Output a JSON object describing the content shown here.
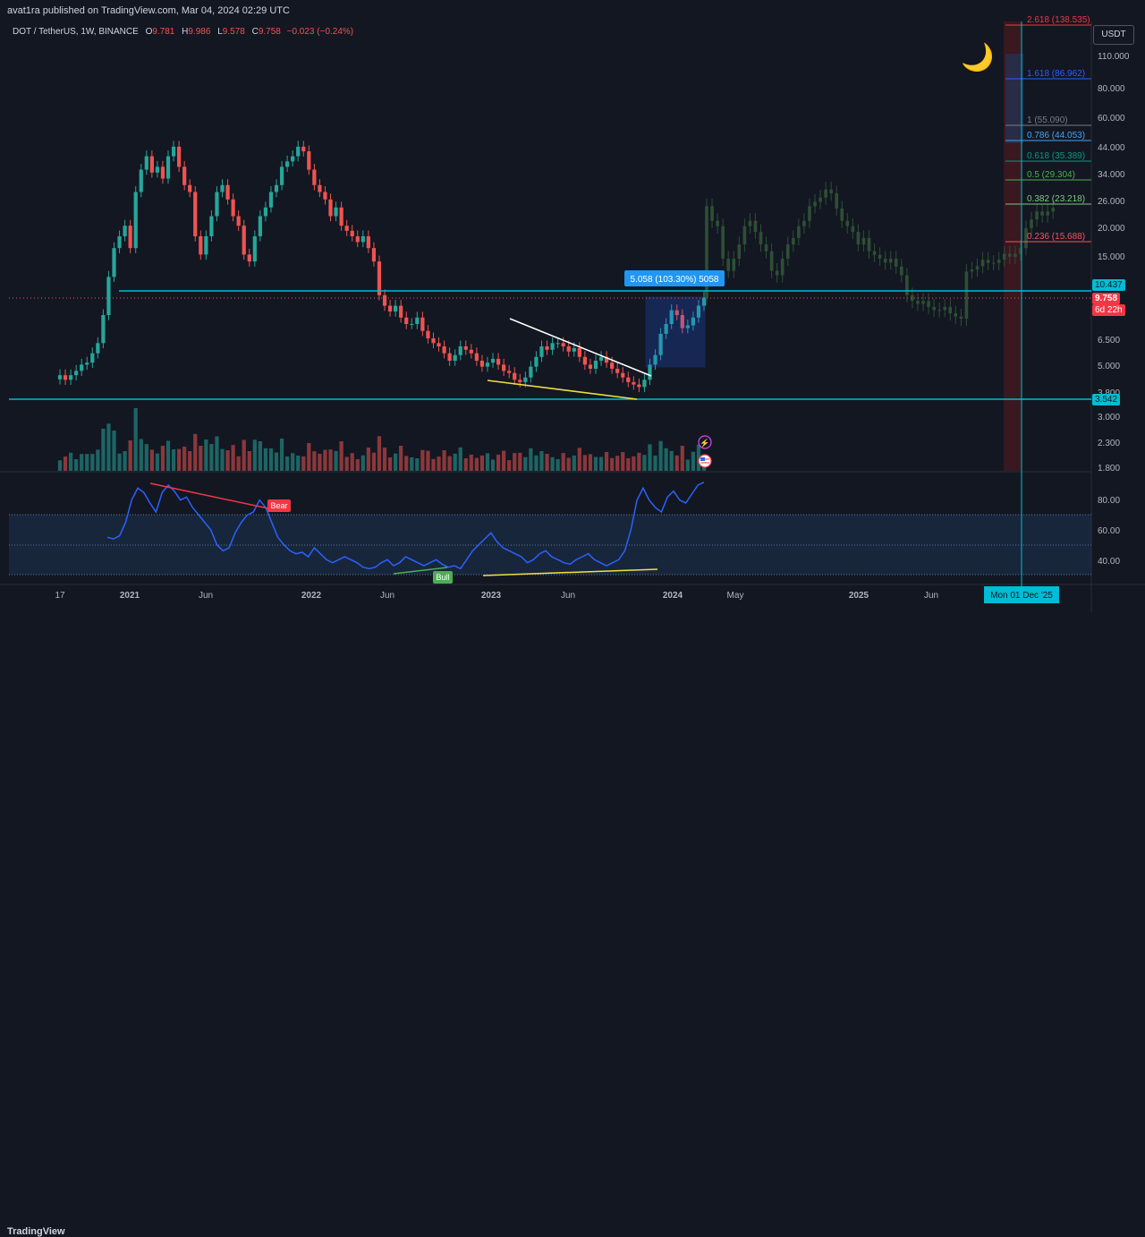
{
  "header": {
    "publisher_text": "avat1ra published on TradingView.com, Mar 04, 2024 02:29 UTC"
  },
  "legend": {
    "symbol": "DOT / TetherUS, 1W, BINANCE",
    "open_label": "O",
    "open": "9.781",
    "high_label": "H",
    "high": "9.986",
    "low_label": "L",
    "low": "9.578",
    "close_label": "C",
    "close": "9.758",
    "change": "−0.023 (−0.24%)"
  },
  "currency": "USDT",
  "moon_icon": "🌙",
  "fib_levels": [
    {
      "label": "2.618 (138.535)",
      "color": "#f23645"
    },
    {
      "label": "1.618 (86.962)",
      "color": "#2962ff"
    },
    {
      "label": "1 (55.090)",
      "color": "#787b86"
    },
    {
      "label": "0.786 (44.053)",
      "color": "#42a5f5"
    },
    {
      "label": "0.618 (35.389)",
      "color": "#089981"
    },
    {
      "label": "0.5 (29.304)",
      "color": "#4caf50"
    },
    {
      "label": "0.382 (23.218)",
      "color": "#81c784"
    },
    {
      "label": "0.236 (15.688)",
      "color": "#f7525f"
    }
  ],
  "price_axis_ticks": [
    "110.000",
    "80.000",
    "60.000",
    "44.000",
    "34.000",
    "26.000",
    "20.000",
    "15.000",
    "6.500",
    "5.000",
    "3.800",
    "3.000",
    "2.300",
    "1.800"
  ],
  "price_badges": {
    "resistance": "10.437",
    "last": "9.758",
    "countdown": "6d 22h",
    "support": "3.542"
  },
  "measure_label": "5.058 (103.30%) 5058",
  "rsi_axis_ticks": [
    "80.00",
    "60.00",
    "40.00"
  ],
  "rsi_labels": {
    "bear": "Bear",
    "bull": "Bull"
  },
  "time_axis_ticks": [
    "17",
    "2021",
    "Jun",
    "2022",
    "Jun",
    "2023",
    "Jun",
    "2024",
    "May",
    "2025",
    "Jun"
  ],
  "crosshair_date": "Mon 01 Dec '25",
  "footer": {
    "brand": "TradingView"
  },
  "colors": {
    "background": "#131722",
    "up": "#26a69a",
    "down": "#ef5350",
    "level_line": "#00bcd4",
    "rsi": "#2962ff",
    "ghost": "#2e4f34"
  },
  "chart_data": {
    "type": "candlestick",
    "symbol": "DOT / TetherUS",
    "interval": "1W",
    "ohlc_last": {
      "open": 9.781,
      "high": 9.986,
      "low": 9.578,
      "close": 9.758
    },
    "closes_approx": [
      4.5,
      4.3,
      4.5,
      4.7,
      5.0,
      5.1,
      5.6,
      6.2,
      8.2,
      12,
      16,
      18,
      20,
      16,
      28,
      35,
      40,
      34,
      36,
      32,
      40,
      44,
      36,
      30,
      28,
      18,
      15,
      18,
      22,
      28,
      30,
      26,
      22,
      20,
      15,
      14,
      18,
      22,
      24,
      28,
      30,
      36,
      38,
      40,
      44,
      42,
      35,
      30,
      28,
      26,
      22,
      24,
      20,
      19,
      18,
      17,
      18,
      16,
      14,
      10,
      9,
      8.5,
      9,
      8,
      7.5,
      7.5,
      8,
      7,
      6.5,
      6.2,
      6,
      5.6,
      5.2,
      5.5,
      6,
      5.8,
      5.6,
      5.2,
      4.9,
      5.1,
      5.3,
      5,
      4.7,
      4.6,
      4.3,
      4.2,
      4.4,
      4.9,
      5.4,
      6,
      5.8,
      6.2,
      6.2,
      6,
      5.7,
      5.9,
      5.4,
      5.0,
      4.8,
      5.2,
      5.4,
      5.1,
      4.8,
      4.6,
      4.4,
      4.2,
      4.1,
      4.0,
      4.3,
      5.0,
      5.5,
      6.8,
      7.5,
      8.6,
      8.2,
      7.2,
      7.4,
      8.0,
      9.0,
      9.758
    ],
    "horizontal_levels": [
      10.437,
      3.542
    ],
    "rsi_range": [
      20,
      100
    ]
  }
}
